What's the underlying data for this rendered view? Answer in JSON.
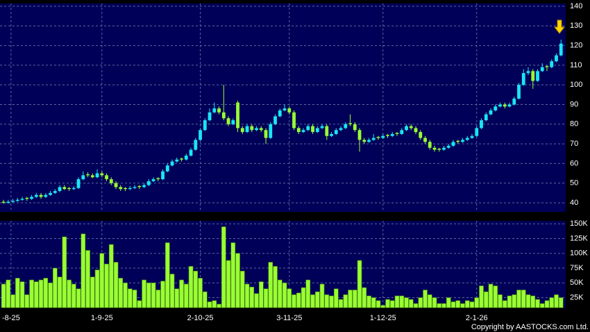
{
  "chart_data": [
    {
      "type": "candlestick",
      "up_color": "#19e6f5",
      "down_color": "#99ff33",
      "grid": true,
      "xlim": [
        -0.75,
        120
      ],
      "ylim": [
        35.4,
        141.4
      ],
      "yticks": [
        40,
        50,
        60,
        70,
        80,
        90,
        100,
        110,
        120,
        130,
        140
      ],
      "ohlc": [
        [
          40.5,
          41.5,
          39.5,
          40
        ],
        [
          40,
          41.5,
          39.5,
          40.5
        ],
        [
          40.5,
          42,
          40,
          41
        ],
        [
          41,
          42.5,
          40.5,
          41.5
        ],
        [
          41.5,
          43,
          41,
          42
        ],
        [
          42.5,
          43,
          41,
          42
        ],
        [
          42,
          44,
          41.5,
          43
        ],
        [
          43,
          45,
          42.5,
          44
        ],
        [
          44,
          45,
          42,
          43
        ],
        [
          43,
          45,
          42.5,
          44
        ],
        [
          44,
          46,
          43.5,
          45
        ],
        [
          45,
          47,
          44.5,
          46
        ],
        [
          46,
          49,
          45.5,
          48
        ],
        [
          48,
          49,
          46.5,
          47
        ],
        [
          47.5,
          48,
          46,
          47
        ],
        [
          47,
          48.5,
          46.5,
          47.5
        ],
        [
          47.5,
          53,
          47,
          52
        ],
        [
          52,
          56,
          51.5,
          54
        ],
        [
          54.5,
          55.5,
          53,
          54
        ],
        [
          54,
          55,
          52.5,
          53
        ],
        [
          53,
          57,
          52.5,
          55
        ],
        [
          55,
          56,
          53,
          54
        ],
        [
          54,
          55,
          51,
          52
        ],
        [
          52,
          53,
          49,
          50
        ],
        [
          50,
          51,
          47,
          48
        ],
        [
          48,
          49,
          46,
          47
        ],
        [
          47.5,
          48,
          46,
          47
        ],
        [
          47,
          48.5,
          46.5,
          47.5
        ],
        [
          47.5,
          49,
          47,
          48
        ],
        [
          48.5,
          49,
          47,
          48
        ],
        [
          48,
          50,
          47.5,
          49
        ],
        [
          49,
          52,
          48.5,
          51
        ],
        [
          51,
          53,
          50.5,
          52
        ],
        [
          52.5,
          53,
          51,
          52
        ],
        [
          52,
          57,
          51.5,
          56
        ],
        [
          56,
          60,
          55.5,
          59
        ],
        [
          59,
          62,
          58.5,
          61
        ],
        [
          61,
          63,
          60.5,
          62
        ],
        [
          62.5,
          63,
          61,
          62
        ],
        [
          62,
          65,
          61.5,
          64
        ],
        [
          64,
          68,
          63.5,
          67
        ],
        [
          67,
          73,
          66.5,
          72
        ],
        [
          72,
          78,
          71.5,
          77
        ],
        [
          77,
          83,
          76.5,
          82
        ],
        [
          82,
          88,
          81.5,
          86
        ],
        [
          86,
          91,
          85.5,
          88
        ],
        [
          88,
          89,
          85,
          86
        ],
        [
          86,
          100,
          82,
          83
        ],
        [
          83,
          84,
          79,
          80
        ],
        [
          80,
          83,
          79.5,
          82
        ],
        [
          91,
          92,
          76,
          78
        ],
        [
          78,
          79,
          75,
          76
        ],
        [
          76,
          80,
          75.5,
          79
        ],
        [
          79,
          80,
          76,
          77
        ],
        [
          77,
          79,
          76.5,
          78
        ],
        [
          78,
          79,
          76,
          77
        ],
        [
          77,
          78,
          70,
          73
        ],
        [
          73,
          81,
          72.5,
          80
        ],
        [
          80,
          85,
          79.5,
          84
        ],
        [
          84,
          88,
          83.5,
          87
        ],
        [
          87,
          90,
          86.5,
          88
        ],
        [
          88,
          89,
          85,
          86
        ],
        [
          86,
          87,
          77,
          78
        ],
        [
          78,
          79,
          75,
          76
        ],
        [
          76,
          78,
          75.5,
          77
        ],
        [
          77,
          80,
          76.5,
          79
        ],
        [
          79,
          80,
          75,
          76
        ],
        [
          76,
          79,
          75.5,
          78
        ],
        [
          78,
          80,
          77.5,
          79
        ],
        [
          79,
          80,
          72,
          74
        ],
        [
          74,
          76,
          73.5,
          75
        ],
        [
          75,
          78,
          74.5,
          77
        ],
        [
          77,
          79,
          76.5,
          78
        ],
        [
          78,
          81,
          77.5,
          80
        ],
        [
          80.5,
          85,
          79,
          80
        ],
        [
          80,
          81,
          76,
          77
        ],
        [
          77,
          78,
          66,
          72
        ],
        [
          72,
          73,
          70,
          71
        ],
        [
          71,
          73,
          70.5,
          72
        ],
        [
          72,
          75,
          71.5,
          73
        ],
        [
          73.5,
          74,
          72,
          73
        ],
        [
          73,
          75,
          72.5,
          74
        ],
        [
          74.5,
          75,
          73,
          74
        ],
        [
          74,
          76,
          73.5,
          75
        ],
        [
          75.5,
          76,
          74,
          75
        ],
        [
          75,
          78,
          74.5,
          77
        ],
        [
          77,
          80,
          76.5,
          79
        ],
        [
          79,
          80,
          77,
          78
        ],
        [
          78,
          79,
          75,
          76
        ],
        [
          76,
          77,
          72,
          73
        ],
        [
          73,
          74,
          70,
          71
        ],
        [
          71,
          72,
          67,
          68
        ],
        [
          68,
          69,
          66,
          67
        ],
        [
          67.5,
          68,
          66,
          67
        ],
        [
          67,
          69,
          66.5,
          68
        ],
        [
          68,
          70,
          67.5,
          69
        ],
        [
          69,
          72,
          68.5,
          71
        ],
        [
          71.5,
          72,
          70,
          71
        ],
        [
          71,
          73,
          70.5,
          72
        ],
        [
          72,
          74,
          71.5,
          73
        ],
        [
          73,
          75,
          72.5,
          74
        ],
        [
          74,
          79,
          73.5,
          78
        ],
        [
          78,
          83,
          77.5,
          82
        ],
        [
          82,
          86,
          81.5,
          85
        ],
        [
          85,
          88,
          84.5,
          87
        ],
        [
          87,
          90,
          86.5,
          89
        ],
        [
          89,
          91,
          88.5,
          90
        ],
        [
          90,
          91,
          88,
          89
        ],
        [
          89,
          91,
          88.5,
          90
        ],
        [
          90,
          94,
          89.5,
          93
        ],
        [
          93,
          101,
          92.5,
          100
        ],
        [
          100,
          108,
          99.5,
          106
        ],
        [
          106,
          109,
          105,
          107
        ],
        [
          107,
          108,
          98,
          102
        ],
        [
          102,
          108,
          101.5,
          107
        ],
        [
          107,
          111,
          106.5,
          109
        ],
        [
          109.5,
          110,
          107,
          109
        ],
        [
          109,
          113,
          108.5,
          112
        ],
        [
          112,
          116,
          111.5,
          115
        ],
        [
          115,
          123,
          114.5,
          121
        ]
      ]
    },
    {
      "type": "bar",
      "color": "#99ff33",
      "grid": true,
      "xlim": [
        -0.75,
        120
      ],
      "ylim": [
        8000,
        155000
      ],
      "yticks": [
        {
          "value": 25000,
          "label": "25K"
        },
        {
          "value": 50000,
          "label": "50K"
        },
        {
          "value": 75000,
          "label": "75K"
        },
        {
          "value": 100000,
          "label": "100K"
        },
        {
          "value": 125000,
          "label": "125K"
        },
        {
          "value": 150000,
          "label": "150K"
        }
      ],
      "xticks": [
        {
          "value": 1.6,
          "label": "-8-25"
        },
        {
          "value": 21,
          "label": "1-9-25"
        },
        {
          "value": 42,
          "label": "2-10-25"
        },
        {
          "value": 61,
          "label": "3-11-25"
        },
        {
          "value": 81,
          "label": "1-12-25"
        },
        {
          "value": 101,
          "label": "2-1-26"
        }
      ],
      "values": [
        48000,
        55000,
        30000,
        58000,
        52000,
        30000,
        55000,
        52000,
        55000,
        58000,
        50000,
        75000,
        60000,
        128000,
        55000,
        48000,
        40000,
        133000,
        105000,
        60000,
        72000,
        100000,
        82000,
        115000,
        85000,
        58000,
        50000,
        40000,
        38000,
        20000,
        55000,
        50000,
        50000,
        38000,
        53000,
        118000,
        65000,
        40000,
        55000,
        48000,
        78000,
        70000,
        58000,
        35000,
        18000,
        20000,
        14000,
        145000,
        88000,
        118000,
        100000,
        70000,
        48000,
        43000,
        32000,
        52000,
        40000,
        85000,
        78000,
        55000,
        50000,
        40000,
        30000,
        33000,
        42000,
        55000,
        30000,
        35000,
        48000,
        30000,
        28000,
        40000,
        22000,
        30000,
        38000,
        38000,
        88000,
        42000,
        28000,
        25000,
        20000,
        12000,
        22000,
        20000,
        28000,
        28000,
        25000,
        22000,
        15000,
        25000,
        38000,
        30000,
        25000,
        15000,
        15000,
        25000,
        18000,
        20000,
        15000,
        20000,
        18000,
        25000,
        45000,
        35000,
        48000,
        45000,
        30000,
        20000,
        28000,
        30000,
        38000,
        38000,
        30000,
        28000,
        22000,
        15000,
        20000,
        25000,
        30000,
        25000
      ]
    }
  ],
  "copyright": "Copyright by AASTOCKS.com Ltd."
}
